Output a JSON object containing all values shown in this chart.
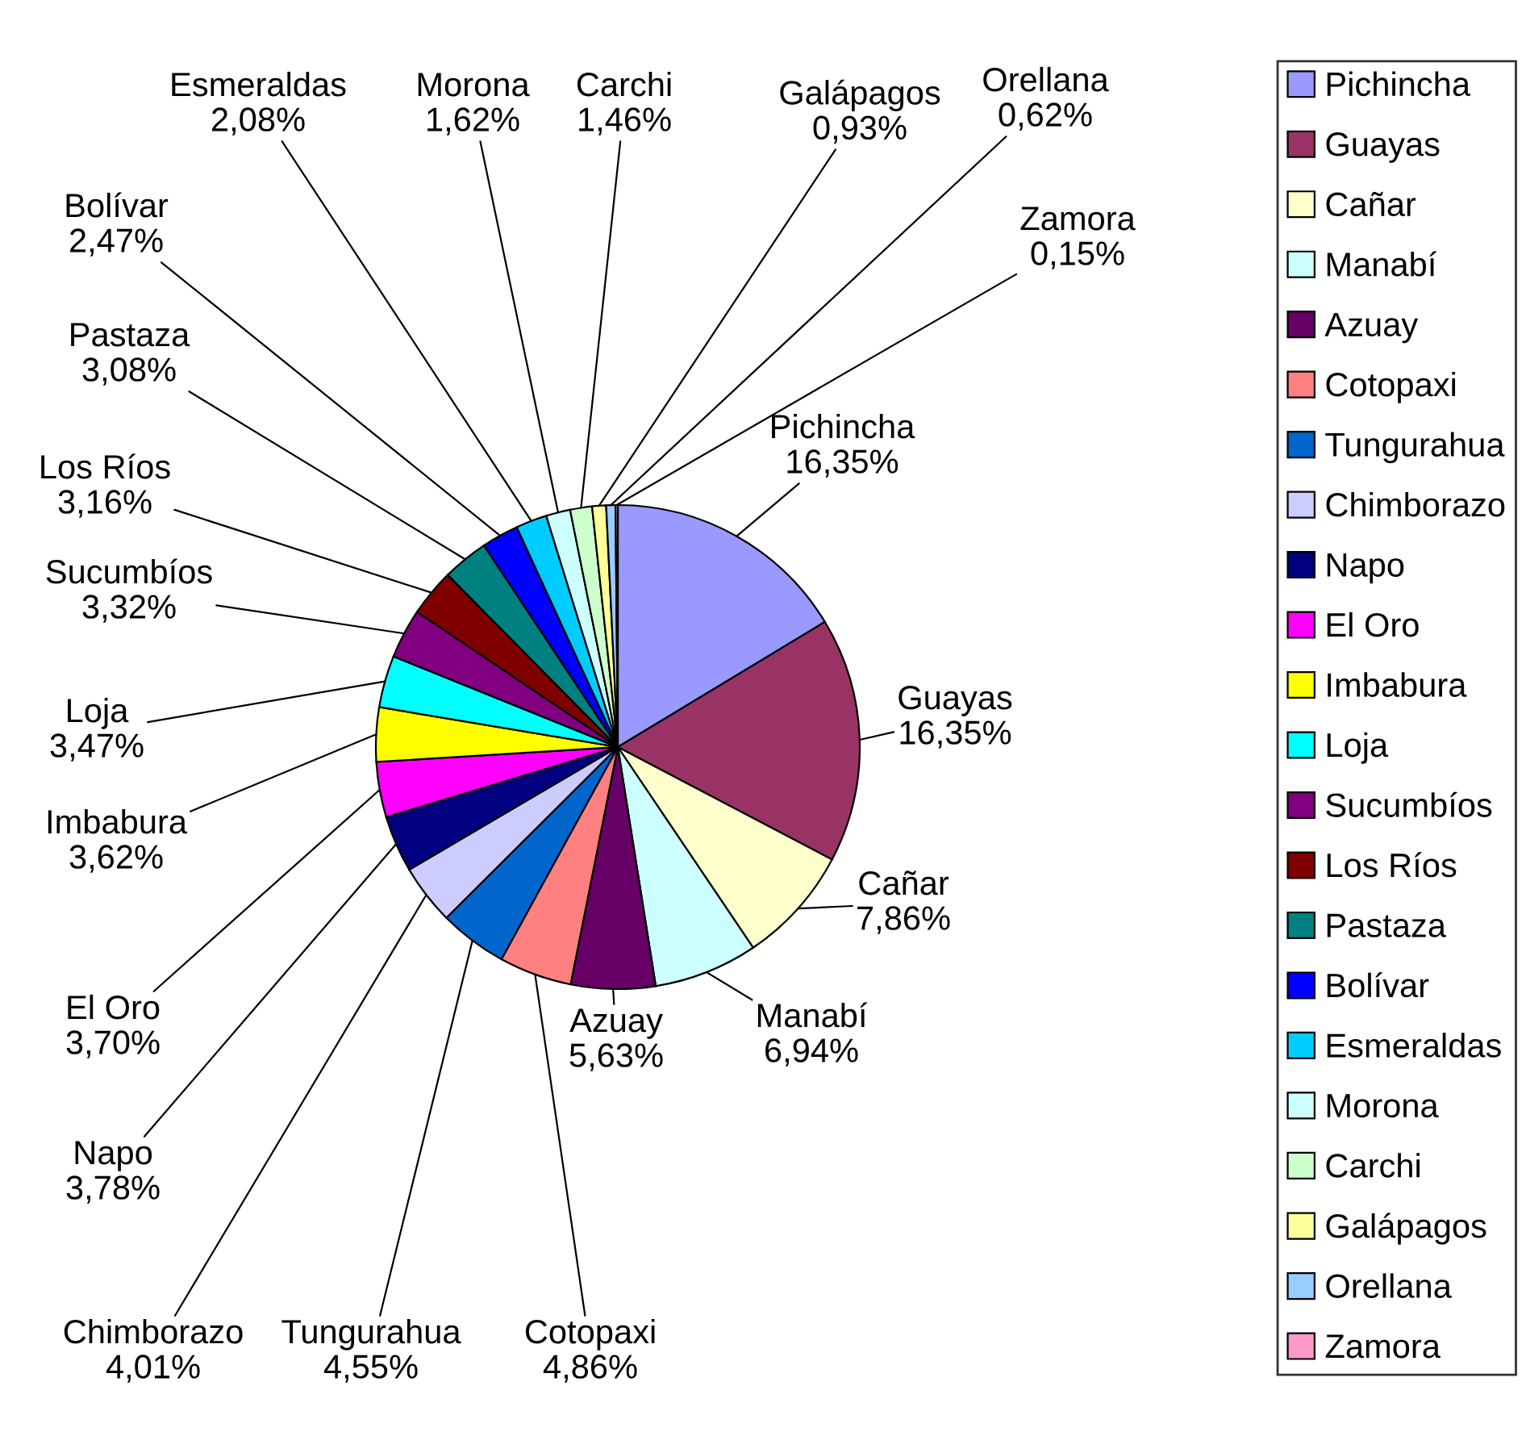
{
  "chart_data": {
    "type": "pie",
    "categories": [
      "Pichincha",
      "Guayas",
      "Cañar",
      "Manabí",
      "Azuay",
      "Cotopaxi",
      "Tungurahua",
      "Chimborazo",
      "Napo",
      "El Oro",
      "Imbabura",
      "Loja",
      "Sucumbíos",
      "Los Ríos",
      "Pastaza",
      "Bolívar",
      "Esmeraldas",
      "Morona",
      "Carchi",
      "Galápagos",
      "Orellana",
      "Zamora"
    ],
    "values": [
      16.35,
      16.35,
      7.86,
      6.94,
      5.63,
      4.86,
      4.55,
      4.01,
      3.78,
      3.7,
      3.62,
      3.47,
      3.32,
      3.16,
      3.08,
      2.47,
      2.08,
      1.62,
      1.46,
      0.93,
      0.62,
      0.15
    ],
    "value_labels": [
      "16,35%",
      "16,35%",
      "7,86%",
      "6,94%",
      "5,63%",
      "4,86%",
      "4,55%",
      "4,01%",
      "3,78%",
      "3,70%",
      "3,62%",
      "3,47%",
      "3,32%",
      "3,16%",
      "3,08%",
      "2,47%",
      "2,08%",
      "1,62%",
      "1,46%",
      "0,93%",
      "0,62%",
      "0,15%"
    ],
    "colors": [
      "#9999ff",
      "#993366",
      "#ffffcc",
      "#ccffff",
      "#660066",
      "#ff8080",
      "#0066cc",
      "#ccccff",
      "#000080",
      "#ff00ff",
      "#ffff00",
      "#00ffff",
      "#800080",
      "#800000",
      "#008080",
      "#0000ff",
      "#00ccff",
      "#ccffff",
      "#ccffcc",
      "#ffff99",
      "#99ccff",
      "#ff99cc"
    ],
    "legend": "right"
  }
}
